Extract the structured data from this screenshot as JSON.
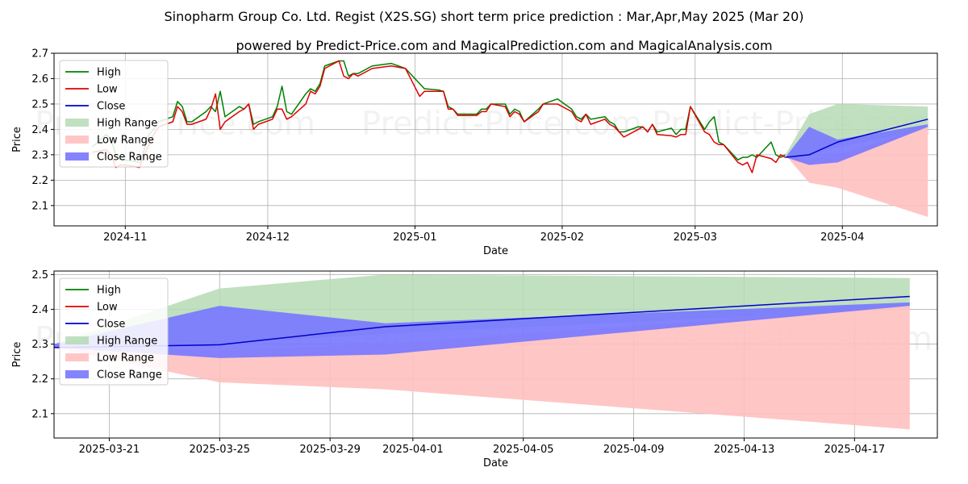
{
  "title": "Sinopharm Group Co. Ltd. Regist (X2S.SG) short term price prediction : Mar,Apr,May 2025 (Mar 20)",
  "subtitle": "powered by Predict-Price.com and MagicalPrediction.com and MagicalAnalysis.com",
  "watermark": "Predict-Price.com",
  "colors": {
    "high": "#008000",
    "low": "#e00000",
    "close": "#0000cc",
    "high_range": "#b5dab5",
    "low_range": "#ffc0c0",
    "close_range": "#7777ff"
  },
  "chart_data": [
    {
      "type": "line",
      "xlabel": "Date",
      "ylabel": "Price",
      "xlim": [
        "2024-10-17",
        "2025-04-21"
      ],
      "ylim": [
        2.02,
        2.7
      ],
      "x_ticks": [
        {
          "date": "2024-11-01",
          "label": "2024-11"
        },
        {
          "date": "2024-12-01",
          "label": "2024-12"
        },
        {
          "date": "2025-01-01",
          "label": "2025-01"
        },
        {
          "date": "2025-02-01",
          "label": "2025-02"
        },
        {
          "date": "2025-03-01",
          "label": "2025-03"
        },
        {
          "date": "2025-04-01",
          "label": "2025-04"
        }
      ],
      "y_ticks": [
        2.1,
        2.2,
        2.3,
        2.4,
        2.5,
        2.6,
        2.7
      ],
      "legend": {
        "position": "top-left",
        "entries": [
          "High",
          "Low",
          "Close",
          "High Range",
          "Low Range",
          "Close Range"
        ]
      },
      "grid": true,
      "series": [
        {
          "name": "High",
          "style": "line",
          "x": [
            "2024-10-25",
            "2024-10-28",
            "2024-10-29",
            "2024-10-30",
            "2024-10-31",
            "2024-11-01",
            "2024-11-04",
            "2024-11-05",
            "2024-11-06",
            "2024-11-07",
            "2024-11-08",
            "2024-11-11",
            "2024-11-12",
            "2024-11-13",
            "2024-11-14",
            "2024-11-15",
            "2024-11-18",
            "2024-11-19",
            "2024-11-20",
            "2024-11-21",
            "2024-11-22",
            "2024-11-25",
            "2024-11-26",
            "2024-11-27",
            "2024-11-28",
            "2024-11-29",
            "2024-12-02",
            "2024-12-03",
            "2024-12-04",
            "2024-12-05",
            "2024-12-06",
            "2024-12-09",
            "2024-12-10",
            "2024-12-11",
            "2024-12-12",
            "2024-12-13",
            "2024-12-16",
            "2024-12-17",
            "2024-12-18",
            "2024-12-19",
            "2024-12-20",
            "2024-12-23",
            "2024-12-27",
            "2024-12-30",
            "2025-01-02",
            "2025-01-03",
            "2025-01-06",
            "2025-01-07",
            "2025-01-08",
            "2025-01-09",
            "2025-01-10",
            "2025-01-13",
            "2025-01-14",
            "2025-01-15",
            "2025-01-16",
            "2025-01-17",
            "2025-01-20",
            "2025-01-21",
            "2025-01-22",
            "2025-01-23",
            "2025-01-24",
            "2025-01-27",
            "2025-01-28",
            "2025-01-31",
            "2025-02-03",
            "2025-02-04",
            "2025-02-05",
            "2025-02-06",
            "2025-02-07",
            "2025-02-10",
            "2025-02-11",
            "2025-02-12",
            "2025-02-13",
            "2025-02-14",
            "2025-02-17",
            "2025-02-18",
            "2025-02-19",
            "2025-02-20",
            "2025-02-21",
            "2025-02-24",
            "2025-02-25",
            "2025-02-26",
            "2025-02-27",
            "2025-02-28",
            "2025-03-03",
            "2025-03-04",
            "2025-03-05",
            "2025-03-06",
            "2025-03-07",
            "2025-03-10",
            "2025-03-11",
            "2025-03-12",
            "2025-03-13",
            "2025-03-14",
            "2025-03-17",
            "2025-03-18",
            "2025-03-19",
            "2025-03-20"
          ],
          "y": [
            2.33,
            2.38,
            2.36,
            2.3,
            2.28,
            2.28,
            2.27,
            2.32,
            2.38,
            2.4,
            2.43,
            2.45,
            2.51,
            2.49,
            2.43,
            2.43,
            2.47,
            2.49,
            2.47,
            2.55,
            2.45,
            2.49,
            2.48,
            2.5,
            2.42,
            2.43,
            2.45,
            2.49,
            2.57,
            2.47,
            2.46,
            2.54,
            2.56,
            2.55,
            2.58,
            2.65,
            2.67,
            2.67,
            2.61,
            2.62,
            2.62,
            2.65,
            2.66,
            2.64,
            2.58,
            2.56,
            2.555,
            2.55,
            2.49,
            2.48,
            2.46,
            2.46,
            2.46,
            2.48,
            2.48,
            2.5,
            2.5,
            2.46,
            2.48,
            2.47,
            2.43,
            2.48,
            2.5,
            2.52,
            2.48,
            2.45,
            2.44,
            2.46,
            2.44,
            2.45,
            2.43,
            2.42,
            2.39,
            2.39,
            2.41,
            2.41,
            2.39,
            2.42,
            2.39,
            2.405,
            2.38,
            2.4,
            2.4,
            2.49,
            2.4,
            2.43,
            2.45,
            2.35,
            2.34,
            2.28,
            2.29,
            2.29,
            2.3,
            2.29,
            2.35,
            2.3,
            2.29,
            2.3
          ]
        },
        {
          "name": "Low",
          "style": "line",
          "x": [
            "2024-10-25",
            "2024-10-28",
            "2024-10-29",
            "2024-10-30",
            "2024-10-31",
            "2024-11-01",
            "2024-11-04",
            "2024-11-05",
            "2024-11-06",
            "2024-11-07",
            "2024-11-08",
            "2024-11-11",
            "2024-11-12",
            "2024-11-13",
            "2024-11-14",
            "2024-11-15",
            "2024-11-18",
            "2024-11-19",
            "2024-11-20",
            "2024-11-21",
            "2024-11-22",
            "2024-11-25",
            "2024-11-26",
            "2024-11-27",
            "2024-11-28",
            "2024-11-29",
            "2024-12-02",
            "2024-12-03",
            "2024-12-04",
            "2024-12-05",
            "2024-12-06",
            "2024-12-09",
            "2024-12-10",
            "2024-12-11",
            "2024-12-12",
            "2024-12-13",
            "2024-12-16",
            "2024-12-17",
            "2024-12-18",
            "2024-12-19",
            "2024-12-20",
            "2024-12-23",
            "2024-12-27",
            "2024-12-30",
            "2025-01-02",
            "2025-01-03",
            "2025-01-06",
            "2025-01-07",
            "2025-01-08",
            "2025-01-09",
            "2025-01-10",
            "2025-01-13",
            "2025-01-14",
            "2025-01-15",
            "2025-01-16",
            "2025-01-17",
            "2025-01-20",
            "2025-01-21",
            "2025-01-22",
            "2025-01-23",
            "2025-01-24",
            "2025-01-27",
            "2025-01-28",
            "2025-01-31",
            "2025-02-03",
            "2025-02-04",
            "2025-02-05",
            "2025-02-06",
            "2025-02-07",
            "2025-02-10",
            "2025-02-11",
            "2025-02-12",
            "2025-02-13",
            "2025-02-14",
            "2025-02-17",
            "2025-02-18",
            "2025-02-19",
            "2025-02-20",
            "2025-02-21",
            "2025-02-24",
            "2025-02-25",
            "2025-02-26",
            "2025-02-27",
            "2025-02-28",
            "2025-03-03",
            "2025-03-04",
            "2025-03-05",
            "2025-03-06",
            "2025-03-07",
            "2025-03-10",
            "2025-03-11",
            "2025-03-12",
            "2025-03-13",
            "2025-03-14",
            "2025-03-17",
            "2025-03-18",
            "2025-03-19",
            "2025-03-20"
          ],
          "y": [
            2.31,
            2.32,
            2.3,
            2.25,
            2.26,
            2.26,
            2.25,
            2.3,
            2.34,
            2.38,
            2.41,
            2.43,
            2.49,
            2.47,
            2.42,
            2.42,
            2.44,
            2.48,
            2.54,
            2.4,
            2.43,
            2.47,
            2.48,
            2.5,
            2.4,
            2.42,
            2.44,
            2.48,
            2.48,
            2.44,
            2.45,
            2.5,
            2.55,
            2.54,
            2.57,
            2.64,
            2.67,
            2.61,
            2.6,
            2.62,
            2.61,
            2.64,
            2.65,
            2.64,
            2.53,
            2.55,
            2.55,
            2.55,
            2.48,
            2.48,
            2.455,
            2.455,
            2.455,
            2.47,
            2.47,
            2.5,
            2.49,
            2.45,
            2.47,
            2.46,
            2.43,
            2.47,
            2.5,
            2.5,
            2.47,
            2.44,
            2.43,
            2.46,
            2.42,
            2.44,
            2.42,
            2.41,
            2.39,
            2.37,
            2.4,
            2.41,
            2.39,
            2.42,
            2.38,
            2.375,
            2.37,
            2.38,
            2.38,
            2.49,
            2.39,
            2.38,
            2.35,
            2.34,
            2.34,
            2.27,
            2.26,
            2.27,
            2.23,
            2.3,
            2.285,
            2.27,
            2.3,
            2.29
          ]
        },
        {
          "name": "High Range",
          "style": "band",
          "x": [
            "2025-03-20",
            "2025-03-25",
            "2025-03-31",
            "2025-04-19"
          ],
          "upper": [
            2.3,
            2.46,
            2.5,
            2.49
          ],
          "lower": [
            2.3,
            2.3,
            2.33,
            2.4
          ]
        },
        {
          "name": "Low Range",
          "style": "band",
          "x": [
            "2025-03-20",
            "2025-03-25",
            "2025-03-31",
            "2025-04-19"
          ],
          "upper": [
            2.3,
            2.28,
            2.3,
            2.41
          ],
          "lower": [
            2.3,
            2.19,
            2.17,
            2.055
          ]
        },
        {
          "name": "Close Range",
          "style": "band",
          "x": [
            "2025-03-20",
            "2025-03-25",
            "2025-03-31",
            "2025-04-19"
          ],
          "upper": [
            2.29,
            2.41,
            2.36,
            2.42
          ],
          "lower": [
            2.29,
            2.26,
            2.27,
            2.41
          ]
        },
        {
          "name": "Close",
          "style": "line",
          "x": [
            "2025-03-20",
            "2025-03-25",
            "2025-03-31",
            "2025-04-19"
          ],
          "y": [
            2.29,
            2.3,
            2.35,
            2.44
          ]
        }
      ]
    },
    {
      "type": "line",
      "xlabel": "Date",
      "ylabel": "Price",
      "xlim": [
        "2025-03-19",
        "2025-04-20"
      ],
      "ylim": [
        2.03,
        2.51
      ],
      "x_ticks": [
        {
          "date": "2025-03-21",
          "label": "2025-03-21"
        },
        {
          "date": "2025-03-25",
          "label": "2025-03-25"
        },
        {
          "date": "2025-03-29",
          "label": "2025-03-29"
        },
        {
          "date": "2025-04-01",
          "label": "2025-04-01"
        },
        {
          "date": "2025-04-05",
          "label": "2025-04-05"
        },
        {
          "date": "2025-04-09",
          "label": "2025-04-09"
        },
        {
          "date": "2025-04-13",
          "label": "2025-04-13"
        },
        {
          "date": "2025-04-17",
          "label": "2025-04-17"
        }
      ],
      "y_ticks": [
        2.1,
        2.2,
        2.3,
        2.4,
        2.5
      ],
      "legend": {
        "position": "top-left",
        "entries": [
          "High",
          "Low",
          "Close",
          "High Range",
          "Low Range",
          "Close Range"
        ]
      },
      "grid": true,
      "series": [
        {
          "name": "High",
          "style": "line",
          "x": [],
          "y": []
        },
        {
          "name": "Low",
          "style": "line",
          "x": [],
          "y": []
        },
        {
          "name": "High Range",
          "style": "band",
          "x": [
            "2025-03-19",
            "2025-03-25",
            "2025-03-31",
            "2025-04-19"
          ],
          "upper": [
            2.3,
            2.46,
            2.5,
            2.49
          ],
          "lower": [
            2.29,
            2.3,
            2.33,
            2.4
          ]
        },
        {
          "name": "Low Range",
          "style": "band",
          "x": [
            "2025-03-19",
            "2025-03-25",
            "2025-03-31",
            "2025-04-19"
          ],
          "upper": [
            2.3,
            2.28,
            2.3,
            2.41
          ],
          "lower": [
            2.29,
            2.19,
            2.17,
            2.055
          ]
        },
        {
          "name": "Close Range",
          "style": "band",
          "x": [
            "2025-03-19",
            "2025-03-25",
            "2025-03-31",
            "2025-04-19"
          ],
          "upper": [
            2.3,
            2.41,
            2.36,
            2.42
          ],
          "lower": [
            2.29,
            2.26,
            2.27,
            2.41
          ]
        },
        {
          "name": "Close",
          "style": "line",
          "x": [
            "2025-03-19",
            "2025-03-25",
            "2025-03-31",
            "2025-04-19"
          ],
          "y": [
            2.29,
            2.298,
            2.35,
            2.437
          ]
        }
      ]
    }
  ]
}
